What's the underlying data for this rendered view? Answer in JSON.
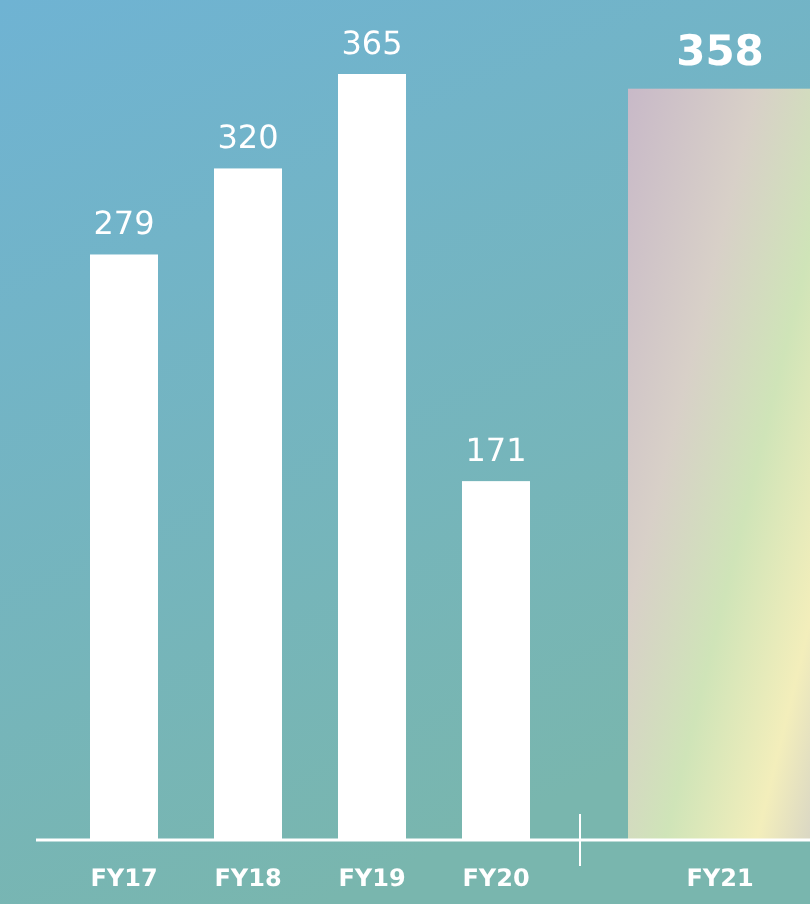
{
  "chart_data": {
    "type": "bar",
    "categories": [
      "FY17",
      "FY18",
      "FY19",
      "FY20",
      "FY21"
    ],
    "values": [
      279,
      320,
      365,
      171,
      358
    ],
    "colors": [
      "#ffffff",
      "#ffffff",
      "#ffffff",
      "#ffffff",
      "#d9d6c4"
    ],
    "data_labels": true,
    "relative": false
  }
}
